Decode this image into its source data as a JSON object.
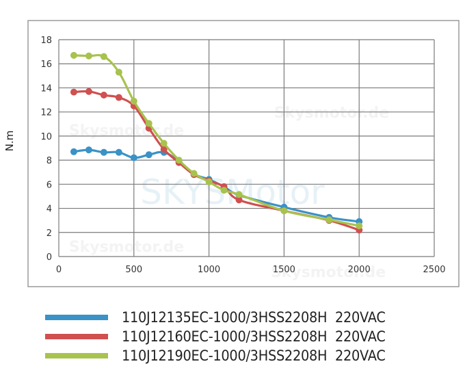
{
  "chart_data": {
    "type": "line",
    "title": "",
    "xlabel": "",
    "ylabel": "N.m",
    "xlim": [
      0,
      2500
    ],
    "ylim": [
      0,
      18
    ],
    "xticks": [
      0,
      500,
      1000,
      1500,
      2000,
      2500
    ],
    "yticks": [
      0,
      2,
      4,
      6,
      8,
      10,
      12,
      14,
      16,
      18
    ],
    "grid": true,
    "legend_position": "bottom",
    "series": [
      {
        "name": "110J12135EC-1000/3HSS2208H  220VAC",
        "color": "#3a92c6",
        "x": [
          100,
          200,
          300,
          400,
          500,
          600,
          700,
          800,
          900,
          1000,
          1100,
          1200,
          1500,
          1800,
          2000
        ],
        "values": [
          8.7,
          8.85,
          8.65,
          8.65,
          8.2,
          8.45,
          8.65,
          7.9,
          6.85,
          6.4,
          5.8,
          5.1,
          4.1,
          3.25,
          2.9
        ]
      },
      {
        "name": "110J12160EC-1000/3HSS2208H  220VAC",
        "color": "#d0504f",
        "x": [
          100,
          200,
          300,
          400,
          500,
          600,
          700,
          800,
          900,
          1000,
          1100,
          1200,
          1500,
          1800,
          2000
        ],
        "values": [
          13.65,
          13.7,
          13.4,
          13.2,
          12.5,
          10.65,
          8.9,
          7.8,
          6.8,
          6.3,
          5.8,
          4.7,
          3.8,
          3.0,
          2.2
        ]
      },
      {
        "name": "110J12190EC-1000/3HSS2208H  220VAC",
        "color": "#a8c24e",
        "x": [
          100,
          200,
          300,
          400,
          500,
          600,
          700,
          800,
          900,
          1000,
          1100,
          1200,
          1500,
          1800,
          2000
        ],
        "values": [
          16.7,
          16.65,
          16.6,
          15.3,
          12.9,
          11.05,
          9.4,
          8.0,
          6.9,
          6.2,
          5.5,
          5.15,
          3.8,
          3.05,
          2.55
        ]
      }
    ],
    "watermarks": [
      "SKYSMotor",
      "Skysmotor.de"
    ]
  },
  "legend": {
    "items": [
      {
        "label": "110J12135EC-1000/3HSS2208H  220VAC",
        "color": "#3a92c6"
      },
      {
        "label": "110J12160EC-1000/3HSS2208H  220VAC",
        "color": "#d0504f"
      },
      {
        "label": "110J12190EC-1000/3HSS2208H  220VAC",
        "color": "#a8c24e"
      }
    ]
  }
}
